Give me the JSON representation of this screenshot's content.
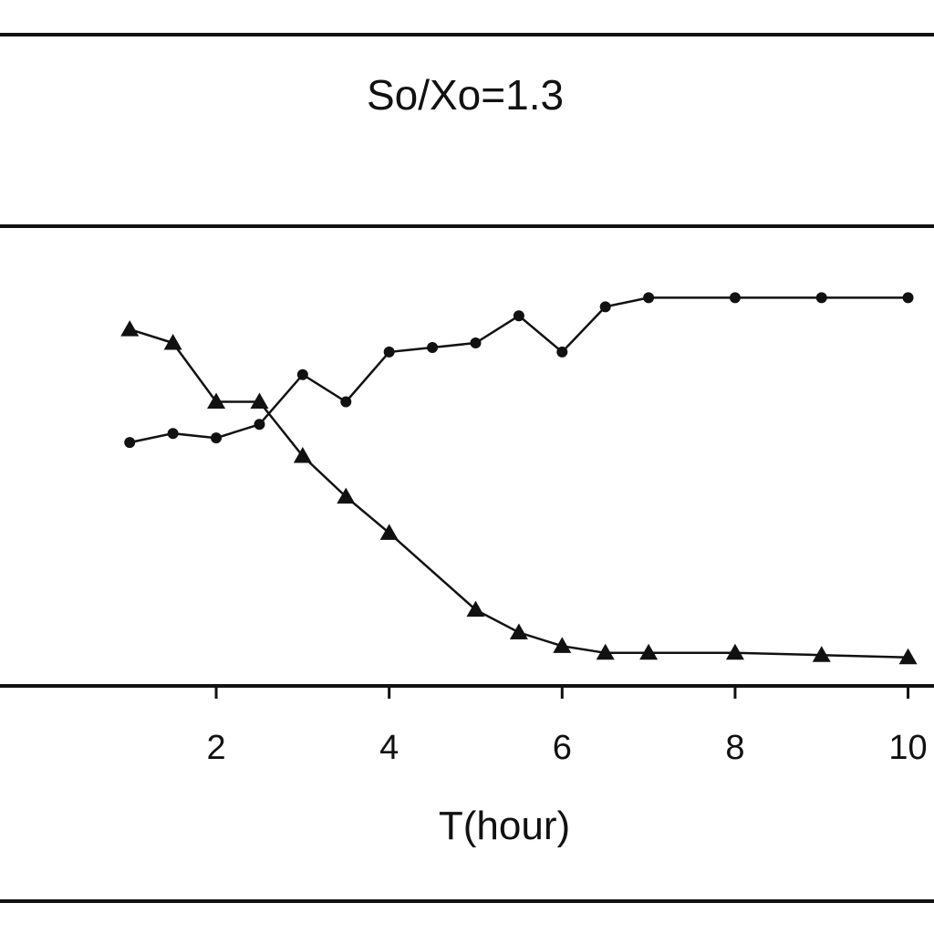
{
  "chart_data": {
    "type": "line",
    "title": "So/Xo=1.3",
    "xlabel": "T(hour)",
    "ylabel": "",
    "xlim": [
      -0.5,
      10.3
    ],
    "ylim": [
      0,
      100
    ],
    "x_ticks": [
      2,
      4,
      6,
      8,
      10
    ],
    "grid": false,
    "series": [
      {
        "marker": "circle",
        "x": [
          1.0,
          1.5,
          2.0,
          2.5,
          3.0,
          3.5,
          4.0,
          4.5,
          5.0,
          5.5,
          6.0,
          6.5,
          7.0,
          8.0,
          9.0,
          10.0
        ],
        "y": [
          53,
          55,
          54,
          57,
          68,
          62,
          73,
          74,
          75,
          81,
          73,
          83,
          85,
          85,
          85,
          85
        ]
      },
      {
        "marker": "triangle",
        "x": [
          1.0,
          1.5,
          2.0,
          2.5,
          3.0,
          3.5,
          4.0,
          5.0,
          5.5,
          6.0,
          6.5,
          7.0,
          8.0,
          9.0,
          10.0
        ],
        "y": [
          78,
          75,
          62,
          62,
          50,
          41,
          33,
          16,
          11,
          8,
          6.5,
          6.5,
          6.5,
          6,
          5.5
        ]
      }
    ]
  }
}
